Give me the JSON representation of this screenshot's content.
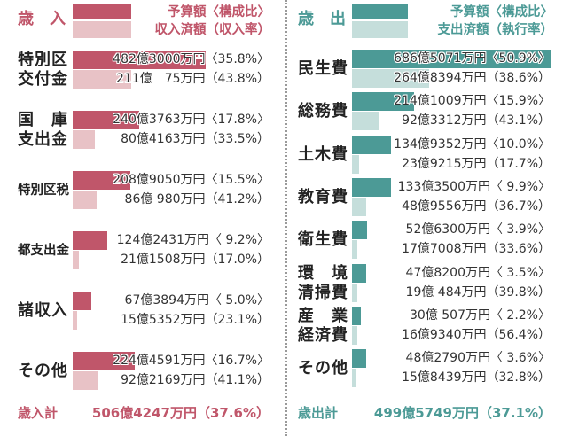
{
  "colors": {
    "text": "#333333",
    "divider": "#9a9a9a",
    "background": "#ffffff"
  },
  "chart_data": [
    {
      "type": "bar",
      "orientation": "horizontal",
      "title": "歳　入",
      "legend_placement": "top",
      "grid": false,
      "categories": [
        [
          "特別区",
          "交付金"
        ],
        [
          "国　庫",
          "支出金"
        ],
        [
          "特別区税"
        ],
        [
          "都支出金"
        ],
        [
          "諸収入"
        ],
        [
          "その他"
        ]
      ],
      "series": [
        {
          "name": "予算額〈構成比〉",
          "color": "#c0566a",
          "values": [
            4823000,
            2403763,
            2089050,
            1242431,
            673894,
            2244591
          ],
          "pct": [
            35.8,
            17.8,
            15.5,
            9.2,
            5.0,
            16.7
          ],
          "labels": [
            "482億3000万円〈35.8%〉",
            "240億3763万円〈17.8%〉",
            "208億9050万円〈15.5%〉",
            "124億2431万円〈 9.2%〉",
            "67億3894万円〈 5.0%〉",
            "224億4591万円〈16.7%〉"
          ]
        },
        {
          "name": "収入済額（収入率）",
          "color": "#e8c2c6",
          "values": [
            2110075,
            804163,
            860980,
            211508,
            155352,
            922169
          ],
          "pct": [
            43.8,
            33.5,
            41.2,
            17.0,
            23.1,
            41.1
          ],
          "labels": [
            "211億　75万円（43.8%）",
            "80億4163万円（33.5%）",
            "86億 980万円（41.2%）",
            "21億1508万円（17.0%）",
            "15億5352万円（23.1%）",
            "92億2169万円（41.1%）"
          ]
        }
      ],
      "total": {
        "label": "歳入計",
        "value": 5064247,
        "pct": 37.6,
        "text": "506億4247万円（37.6%）"
      }
    },
    {
      "type": "bar",
      "orientation": "horizontal",
      "title": "歳　出",
      "legend_placement": "top",
      "grid": false,
      "categories": [
        [
          "民生費"
        ],
        [
          "総務費"
        ],
        [
          "土木費"
        ],
        [
          "教育費"
        ],
        [
          "衛生費"
        ],
        [
          "環　境",
          "清掃費"
        ],
        [
          "産　業",
          "経済費"
        ],
        [
          "その他"
        ]
      ],
      "series": [
        {
          "name": "予算額〈構成比〉",
          "color": "#4c9a96",
          "values": [
            6865071,
            2141009,
            1349352,
            1333500,
            526300,
            478200,
            300507,
            482790
          ],
          "pct": [
            50.9,
            15.9,
            10.0,
            9.9,
            3.9,
            3.5,
            2.2,
            3.6
          ],
          "labels": [
            "686億5071万円〈50.9%〉",
            "214億1009万円〈15.9%〉",
            "134億9352万円〈10.0%〉",
            "133億3500万円〈 9.9%〉",
            "52億6300万円〈 3.9%〉",
            "47億8200万円〈 3.5%〉",
            "30億 507万円〈 2.2%〉",
            "48億2790万円〈 3.6%〉"
          ]
        },
        {
          "name": "支出済額（執行率）",
          "color": "#c5dedb",
          "values": [
            2648394,
            923312,
            239215,
            489556,
            177008,
            190484,
            169340,
            158439
          ],
          "pct": [
            38.6,
            43.1,
            17.7,
            36.7,
            33.6,
            39.8,
            56.4,
            32.8
          ],
          "labels": [
            "264億8394万円（38.6%）",
            "92億3312万円（43.1%）",
            "23億9215万円（17.7%）",
            "48億9556万円（36.7%）",
            "17億7008万円（33.6%）",
            "19億 484万円（39.8%）",
            "16億9340万円（56.4%）",
            "15億8439万円（32.8%）"
          ]
        }
      ],
      "total": {
        "label": "歳出計",
        "value": 4995749,
        "pct": 37.1,
        "text": "499億5749万円（37.1%）"
      }
    }
  ]
}
